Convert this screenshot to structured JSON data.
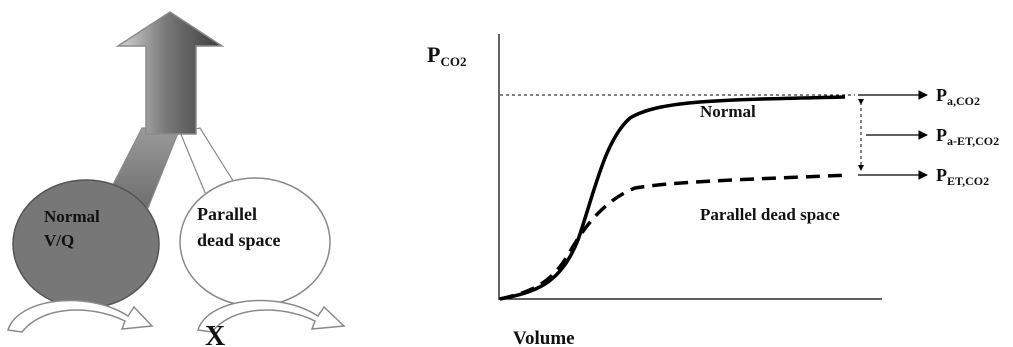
{
  "left_diagram": {
    "normal_label_line1": "Normal",
    "normal_label_line2": "V/Q",
    "dead_space_label_line1": "Parallel",
    "dead_space_label_line2": "dead space",
    "blocked_mark": "X",
    "colors": {
      "normal_fill": "#777777",
      "dead_space_fill": "#ffffff",
      "outline": "#8a8a8a"
    }
  },
  "graph": {
    "y_axis_label_main": "P",
    "y_axis_label_sub": "CO2",
    "x_axis_label": "Volume",
    "curve_normal_label": "Normal",
    "curve_dead_space_label": "Parallel dead space",
    "arrow_labels": [
      {
        "main": "P",
        "sub": "a,CO2"
      },
      {
        "main": "P",
        "sub": "a-ET,CO2"
      },
      {
        "main": "P",
        "sub": "ET,CO2"
      }
    ]
  }
}
